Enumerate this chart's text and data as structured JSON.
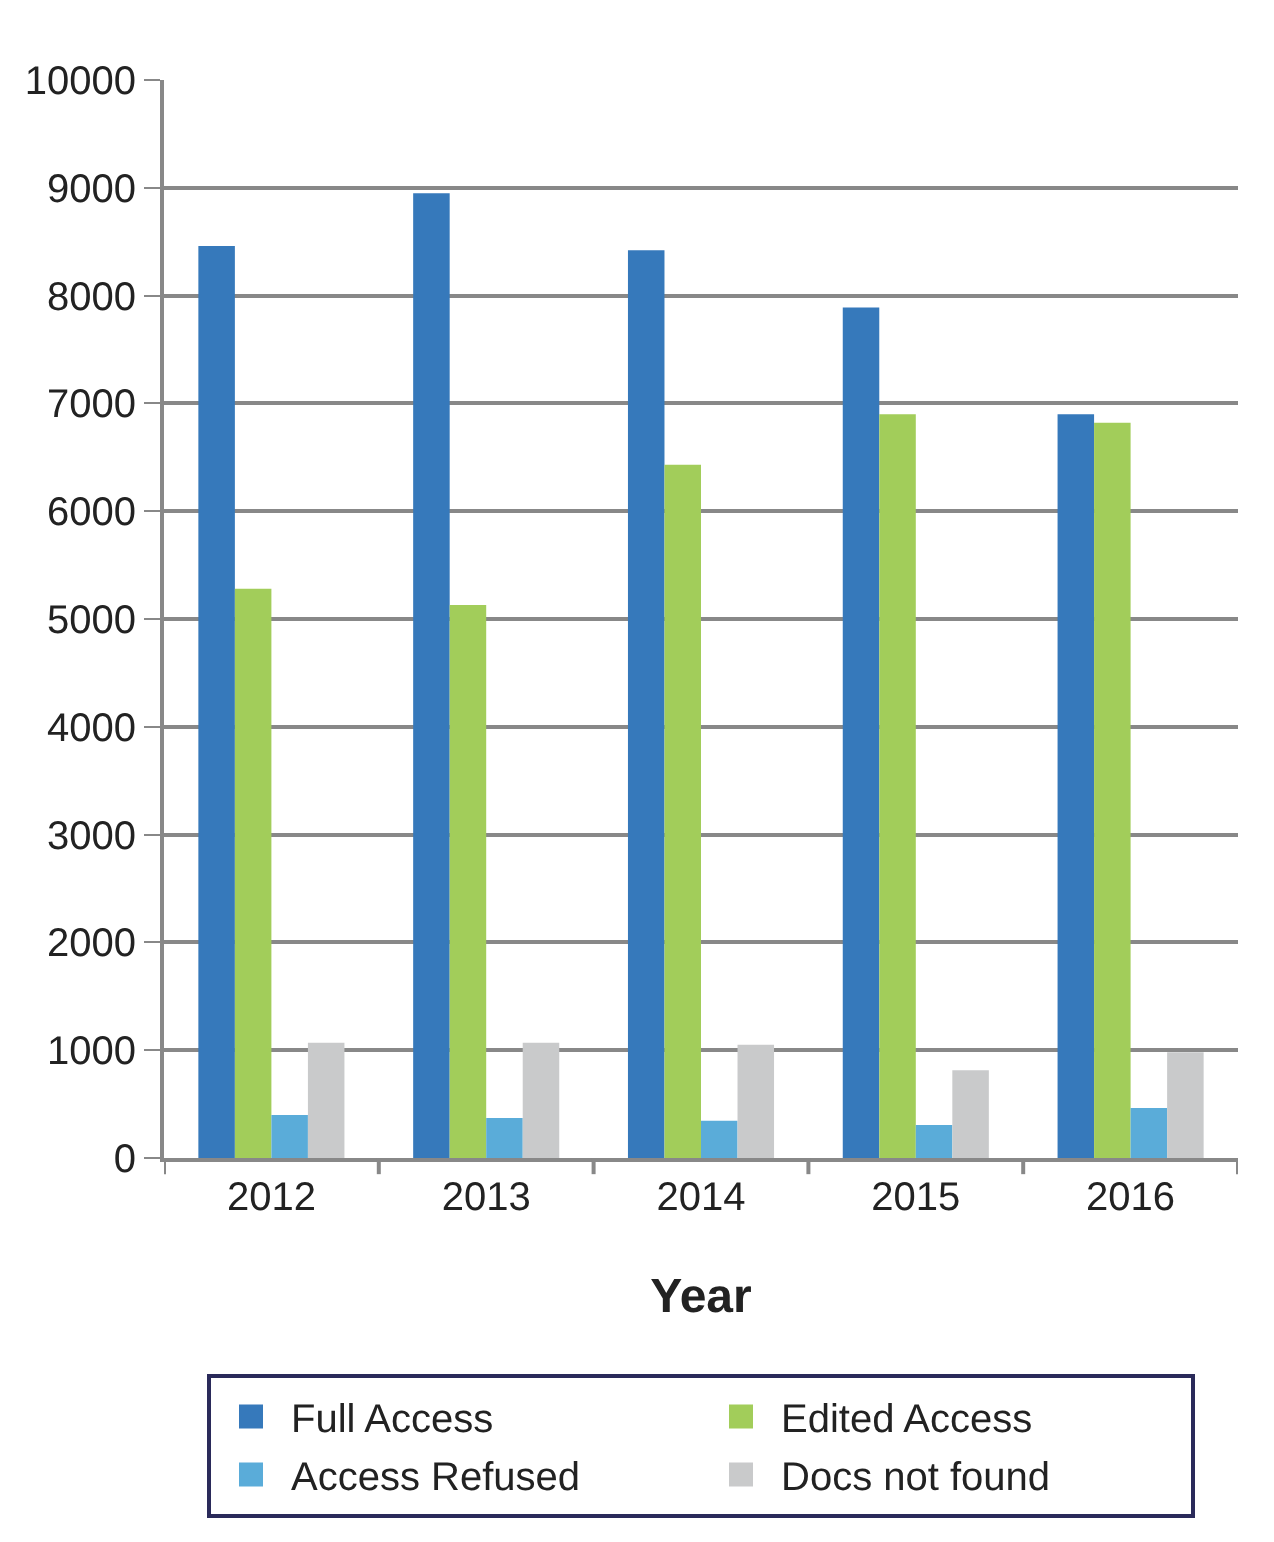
{
  "chart_data": {
    "type": "bar",
    "xlabel": "Year",
    "categories": [
      "2012",
      "2013",
      "2014",
      "2015",
      "2016"
    ],
    "series": [
      {
        "name": "Full Access",
        "color": "#3679bb",
        "values": [
          8460,
          8950,
          8420,
          7890,
          6900
        ]
      },
      {
        "name": "Edited Access",
        "color": "#a2cd5a",
        "values": [
          5280,
          5130,
          6430,
          6900,
          6820
        ]
      },
      {
        "name": "Access Refused",
        "color": "#5aacd9",
        "values": [
          400,
          370,
          345,
          305,
          465
        ]
      },
      {
        "name": "Docs not found",
        "color": "#c9cacb",
        "values": [
          1070,
          1070,
          1050,
          815,
          980
        ]
      }
    ],
    "ylim": [
      0,
      10000
    ],
    "yticks": [
      0,
      1000,
      2000,
      3000,
      4000,
      5000,
      6000,
      7000,
      8000,
      9000,
      10000
    ],
    "grid": "y",
    "legend": "bottom"
  }
}
